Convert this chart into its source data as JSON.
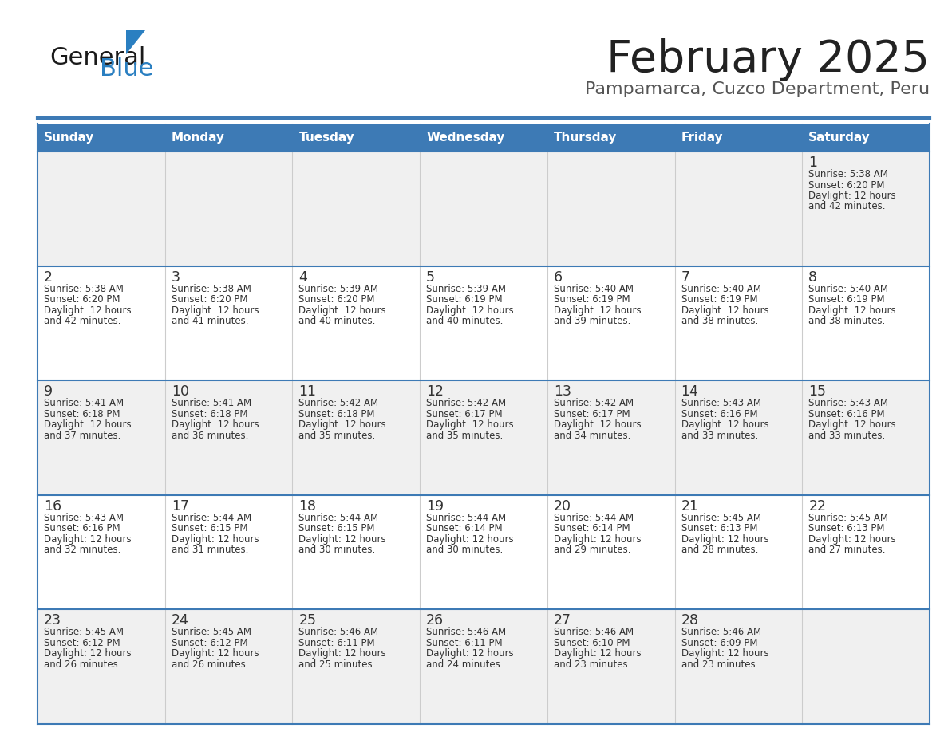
{
  "title": "February 2025",
  "subtitle": "Pampamarca, Cuzco Department, Peru",
  "days_of_week": [
    "Sunday",
    "Monday",
    "Tuesday",
    "Wednesday",
    "Thursday",
    "Friday",
    "Saturday"
  ],
  "header_bg": "#3d7ab5",
  "header_text": "#ffffff",
  "row_bg_odd": "#f0f0f0",
  "row_bg_even": "#ffffff",
  "border_color": "#3d7ab5",
  "text_color": "#333333",
  "day_num_color": "#333333",
  "logo_general_color": "#1a1a1a",
  "logo_blue_color": "#2a7fc1",
  "weeks": [
    [
      null,
      null,
      null,
      null,
      null,
      null,
      1
    ],
    [
      2,
      3,
      4,
      5,
      6,
      7,
      8
    ],
    [
      9,
      10,
      11,
      12,
      13,
      14,
      15
    ],
    [
      16,
      17,
      18,
      19,
      20,
      21,
      22
    ],
    [
      23,
      24,
      25,
      26,
      27,
      28,
      null
    ]
  ],
  "cell_data": {
    "1": {
      "sunrise": "5:38 AM",
      "sunset": "6:20 PM",
      "daylight": "12 hours",
      "daylight2": "and 42 minutes."
    },
    "2": {
      "sunrise": "5:38 AM",
      "sunset": "6:20 PM",
      "daylight": "12 hours",
      "daylight2": "and 42 minutes."
    },
    "3": {
      "sunrise": "5:38 AM",
      "sunset": "6:20 PM",
      "daylight": "12 hours",
      "daylight2": "and 41 minutes."
    },
    "4": {
      "sunrise": "5:39 AM",
      "sunset": "6:20 PM",
      "daylight": "12 hours",
      "daylight2": "and 40 minutes."
    },
    "5": {
      "sunrise": "5:39 AM",
      "sunset": "6:19 PM",
      "daylight": "12 hours",
      "daylight2": "and 40 minutes."
    },
    "6": {
      "sunrise": "5:40 AM",
      "sunset": "6:19 PM",
      "daylight": "12 hours",
      "daylight2": "and 39 minutes."
    },
    "7": {
      "sunrise": "5:40 AM",
      "sunset": "6:19 PM",
      "daylight": "12 hours",
      "daylight2": "and 38 minutes."
    },
    "8": {
      "sunrise": "5:40 AM",
      "sunset": "6:19 PM",
      "daylight": "12 hours",
      "daylight2": "and 38 minutes."
    },
    "9": {
      "sunrise": "5:41 AM",
      "sunset": "6:18 PM",
      "daylight": "12 hours",
      "daylight2": "and 37 minutes."
    },
    "10": {
      "sunrise": "5:41 AM",
      "sunset": "6:18 PM",
      "daylight": "12 hours",
      "daylight2": "and 36 minutes."
    },
    "11": {
      "sunrise": "5:42 AM",
      "sunset": "6:18 PM",
      "daylight": "12 hours",
      "daylight2": "and 35 minutes."
    },
    "12": {
      "sunrise": "5:42 AM",
      "sunset": "6:17 PM",
      "daylight": "12 hours",
      "daylight2": "and 35 minutes."
    },
    "13": {
      "sunrise": "5:42 AM",
      "sunset": "6:17 PM",
      "daylight": "12 hours",
      "daylight2": "and 34 minutes."
    },
    "14": {
      "sunrise": "5:43 AM",
      "sunset": "6:16 PM",
      "daylight": "12 hours",
      "daylight2": "and 33 minutes."
    },
    "15": {
      "sunrise": "5:43 AM",
      "sunset": "6:16 PM",
      "daylight": "12 hours",
      "daylight2": "and 33 minutes."
    },
    "16": {
      "sunrise": "5:43 AM",
      "sunset": "6:16 PM",
      "daylight": "12 hours",
      "daylight2": "and 32 minutes."
    },
    "17": {
      "sunrise": "5:44 AM",
      "sunset": "6:15 PM",
      "daylight": "12 hours",
      "daylight2": "and 31 minutes."
    },
    "18": {
      "sunrise": "5:44 AM",
      "sunset": "6:15 PM",
      "daylight": "12 hours",
      "daylight2": "and 30 minutes."
    },
    "19": {
      "sunrise": "5:44 AM",
      "sunset": "6:14 PM",
      "daylight": "12 hours",
      "daylight2": "and 30 minutes."
    },
    "20": {
      "sunrise": "5:44 AM",
      "sunset": "6:14 PM",
      "daylight": "12 hours",
      "daylight2": "and 29 minutes."
    },
    "21": {
      "sunrise": "5:45 AM",
      "sunset": "6:13 PM",
      "daylight": "12 hours",
      "daylight2": "and 28 minutes."
    },
    "22": {
      "sunrise": "5:45 AM",
      "sunset": "6:13 PM",
      "daylight": "12 hours",
      "daylight2": "and 27 minutes."
    },
    "23": {
      "sunrise": "5:45 AM",
      "sunset": "6:12 PM",
      "daylight": "12 hours",
      "daylight2": "and 26 minutes."
    },
    "24": {
      "sunrise": "5:45 AM",
      "sunset": "6:12 PM",
      "daylight": "12 hours",
      "daylight2": "and 26 minutes."
    },
    "25": {
      "sunrise": "5:46 AM",
      "sunset": "6:11 PM",
      "daylight": "12 hours",
      "daylight2": "and 25 minutes."
    },
    "26": {
      "sunrise": "5:46 AM",
      "sunset": "6:11 PM",
      "daylight": "12 hours",
      "daylight2": "and 24 minutes."
    },
    "27": {
      "sunrise": "5:46 AM",
      "sunset": "6:10 PM",
      "daylight": "12 hours",
      "daylight2": "and 23 minutes."
    },
    "28": {
      "sunrise": "5:46 AM",
      "sunset": "6:09 PM",
      "daylight": "12 hours",
      "daylight2": "and 23 minutes."
    }
  }
}
